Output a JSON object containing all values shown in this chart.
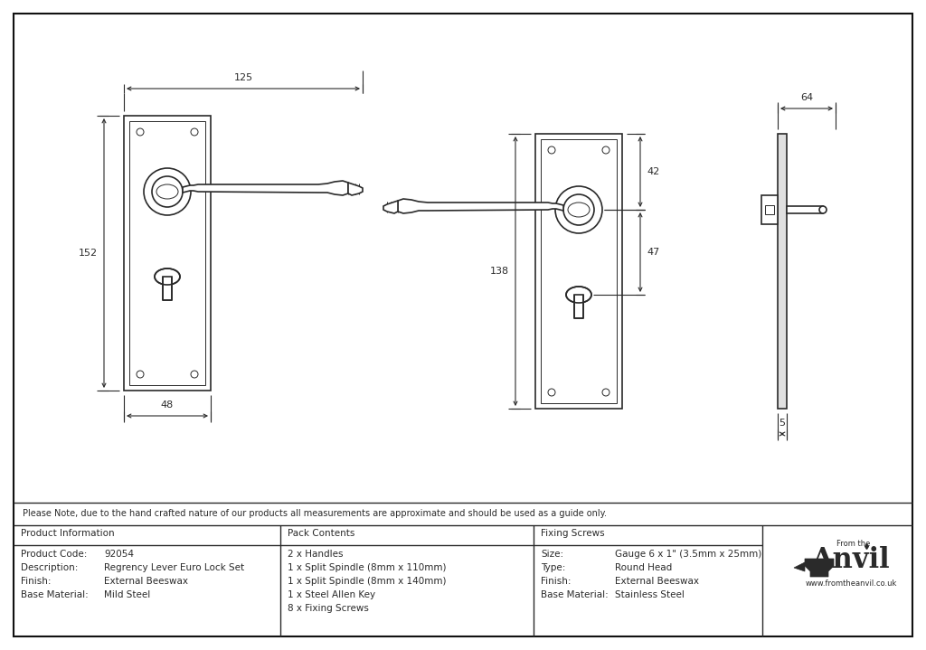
{
  "bg_color": "#ffffff",
  "line_color": "#2a2a2a",
  "note_text": "Please Note, due to the hand crafted nature of our products all measurements are approximate and should be used as a guide only.",
  "prod_info_header": "Product Information",
  "pack_contents_header": "Pack Contents",
  "fixing_screws_header": "Fixing Screws",
  "prod_code_label": "Product Code:",
  "prod_code_val": "92054",
  "desc_label": "Description:",
  "desc_val": "Regrency Lever Euro Lock Set",
  "finish_label": "Finish:",
  "finish_val": "External Beeswax",
  "base_mat_label": "Base Material:",
  "base_mat_val": "Mild Steel",
  "pack_line1": "2 x Handles",
  "pack_line2": "1 x Split Spindle (8mm x 110mm)",
  "pack_line3": "1 x Split Spindle (8mm x 140mm)",
  "pack_line4": "1 x Steel Allen Key",
  "pack_line5": "8 x Fixing Screws",
  "fix_size_label": "Size:",
  "fix_size_val": "Gauge 6 x 1\" (3.5mm x 25mm)",
  "fix_type_label": "Type:",
  "fix_type_val": "Round Head",
  "fix_finish_label": "Finish:",
  "fix_finish_val": "External Beeswax",
  "fix_base_label": "Base Material:",
  "fix_base_val": "Stainless Steel",
  "anvil_url": "www.fromtheanvil.co.uk",
  "dim_125": "125",
  "dim_152": "152",
  "dim_48": "48",
  "dim_138": "138",
  "dim_42": "42",
  "dim_47": "47",
  "dim_64": "64",
  "dim_5": "5",
  "border_lw": 1.5,
  "main_lw": 1.2,
  "thin_lw": 0.7,
  "dim_lw": 0.8
}
